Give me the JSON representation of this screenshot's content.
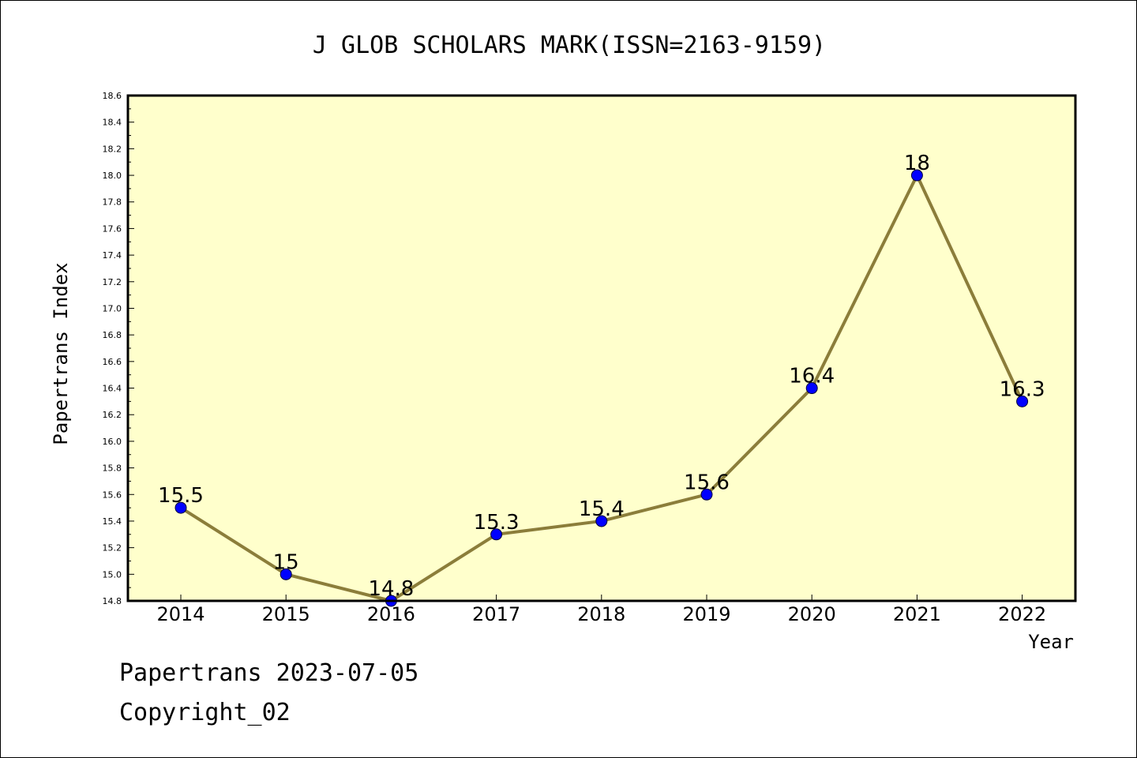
{
  "chart_data": {
    "type": "line",
    "title": "J GLOB SCHOLARS MARK(ISSN=2163-9159)",
    "xlabel": "Year",
    "ylabel": "Papertrans Index",
    "categories": [
      "2014",
      "2015",
      "2016",
      "2017",
      "2018",
      "2019",
      "2020",
      "2021",
      "2022"
    ],
    "series": [
      {
        "values": [
          15.5,
          15.0,
          14.8,
          15.3,
          15.4,
          15.6,
          16.4,
          18.0,
          16.3
        ],
        "data_labels": [
          "15.5",
          "15",
          "14.8",
          "15.3",
          "15.4",
          "15.6",
          "16.4",
          "18",
          "16.3"
        ]
      }
    ],
    "ylim": [
      14.8,
      18.6
    ],
    "yticks": [
      "14.8",
      "15.0",
      "15.2",
      "15.4",
      "15.6",
      "15.8",
      "16.0",
      "16.2",
      "16.4",
      "16.6",
      "16.8",
      "17.0",
      "17.2",
      "17.4",
      "17.6",
      "17.8",
      "18.0",
      "18.2",
      "18.4",
      "18.6"
    ],
    "grid": false,
    "legend": "none",
    "colors": {
      "plot_background": "#ffffcc",
      "line": "#8b7d3a",
      "marker": "#0000ff"
    }
  },
  "footer": {
    "line1": "Papertrans 2023-07-05",
    "line2": "Copyright_02"
  }
}
